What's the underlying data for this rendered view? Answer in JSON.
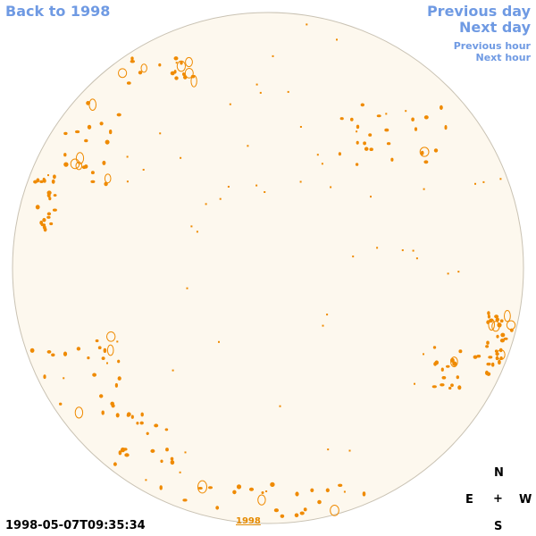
{
  "nav": {
    "back": "Back to 1998",
    "prev_day": "Previous day",
    "next_day": "Next day",
    "prev_hour": "Previous hour",
    "next_hour": "Next hour"
  },
  "compass": {
    "north": "N",
    "south": "S",
    "east": "E",
    "west": "W",
    "center": "+"
  },
  "timestamp": "1998-05-07T09:35:34",
  "year_link": "1998",
  "colors": {
    "link": "#6f9ae3",
    "disk_fill": "#fdf8ee",
    "disk_border": "#c9c2b3",
    "contour": "#ef8a00"
  }
}
